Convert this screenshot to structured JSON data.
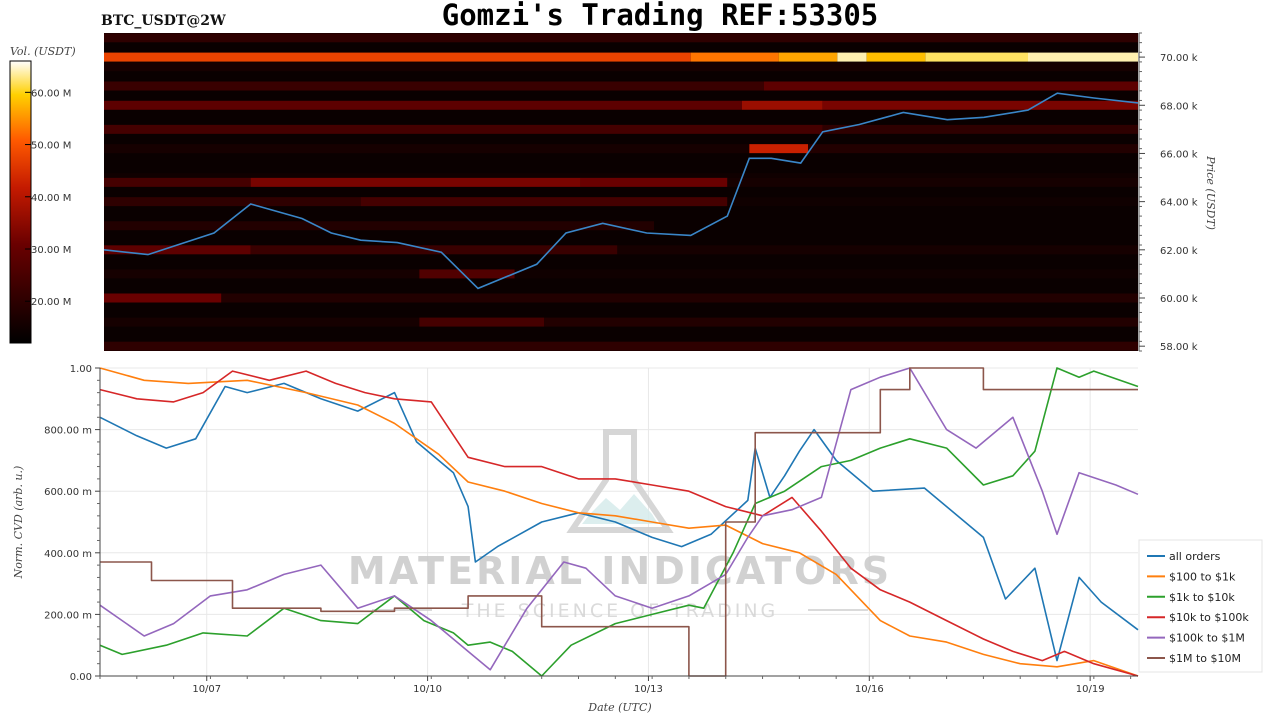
{
  "header": {
    "title": "Gomzi's Trading REF:53305",
    "pair": "BTC_USDT@2W"
  },
  "watermark": {
    "main": "MATERIAL INDICATORS",
    "sub": "THE SCIENCE OF TRADING"
  },
  "colors": {
    "heatmap_bg": "#0a0000",
    "price_line": "#3a86c8",
    "grid": "#e8e8e8"
  },
  "chart_data": [
    {
      "type": "heatmap",
      "title": "",
      "ylabel": "Price (USDT)",
      "colorbar_label": "Vol. (USDT)",
      "ylim": [
        57800,
        71000
      ],
      "y_ticks": [
        "58.00 k",
        "60.00 k",
        "62.00 k",
        "64.00 k",
        "66.00 k",
        "68.00 k",
        "70.00 k"
      ],
      "y_tick_values": [
        58000,
        60000,
        62000,
        64000,
        66000,
        68000,
        70000
      ],
      "colorbar_ticks": [
        "20.00 M",
        "30.00 M",
        "40.00 M",
        "50.00 M",
        "60.00 M"
      ],
      "colorbar_tick_values": [
        20000000,
        30000000,
        40000000,
        50000000,
        60000000
      ],
      "colorbar_range": [
        12000000,
        66000000
      ],
      "x_range_days": [
        0,
        14.1
      ],
      "bands": [
        {
          "price": 70800,
          "segments": [
            [
              0,
              14.1,
              18
            ]
          ]
        },
        {
          "price": 70400,
          "segments": [
            [
              0,
              14.1,
              10
            ]
          ]
        },
        {
          "price": 70000,
          "segments": [
            [
              0,
              8.0,
              46
            ],
            [
              8.0,
              9.2,
              52
            ],
            [
              9.2,
              10.0,
              56
            ],
            [
              10.0,
              10.4,
              64
            ],
            [
              10.4,
              11.2,
              58
            ],
            [
              11.2,
              12.6,
              62
            ],
            [
              12.6,
              14.1,
              64
            ]
          ]
        },
        {
          "price": 69600,
          "segments": [
            [
              0,
              14.1,
              14
            ]
          ]
        },
        {
          "price": 68800,
          "segments": [
            [
              0,
              9.0,
              20
            ],
            [
              9.0,
              14.1,
              26
            ]
          ]
        },
        {
          "price": 68000,
          "segments": [
            [
              0,
              8.7,
              26
            ],
            [
              8.7,
              9.8,
              34
            ],
            [
              9.8,
              14.1,
              30
            ]
          ]
        },
        {
          "price": 67000,
          "segments": [
            [
              0,
              9.8,
              22
            ],
            [
              9.8,
              14.1,
              18
            ]
          ]
        },
        {
          "price": 66200,
          "segments": [
            [
              0,
              8.8,
              14
            ],
            [
              8.8,
              9.6,
              40
            ],
            [
              9.6,
              14.1,
              16
            ]
          ]
        },
        {
          "price": 65000,
          "segments": [
            [
              0,
              14.1,
              13
            ]
          ]
        },
        {
          "price": 64800,
          "segments": [
            [
              0,
              2.0,
              22
            ],
            [
              2.0,
              6.5,
              30
            ],
            [
              6.5,
              8.5,
              28
            ],
            [
              8.5,
              14.1,
              14
            ]
          ]
        },
        {
          "price": 64000,
          "segments": [
            [
              0,
              3.5,
              18
            ],
            [
              3.5,
              8.5,
              22
            ],
            [
              8.5,
              14.1,
              13
            ]
          ]
        },
        {
          "price": 63000,
          "segments": [
            [
              0,
              7.5,
              16
            ],
            [
              7.5,
              14.1,
              12
            ]
          ]
        },
        {
          "price": 62000,
          "segments": [
            [
              0,
              2.0,
              26
            ],
            [
              2.0,
              7.0,
              20
            ],
            [
              7.0,
              14.1,
              14
            ]
          ]
        },
        {
          "price": 61000,
          "segments": [
            [
              0,
              4.3,
              14
            ],
            [
              4.3,
              5.6,
              24
            ],
            [
              5.6,
              14.1,
              13
            ]
          ]
        },
        {
          "price": 60000,
          "segments": [
            [
              0,
              1.6,
              28
            ],
            [
              1.6,
              14.1,
              16
            ]
          ]
        },
        {
          "price": 59000,
          "segments": [
            [
              0,
              4.3,
              14
            ],
            [
              4.3,
              6.0,
              22
            ],
            [
              6.0,
              14.1,
              16
            ]
          ]
        },
        {
          "price": 58000,
          "segments": [
            [
              0,
              14.1,
              18
            ]
          ]
        }
      ],
      "price_series": {
        "name": "",
        "x_days": [
          0,
          0.6,
          1.0,
          1.5,
          2.0,
          2.7,
          3.1,
          3.5,
          4.0,
          4.6,
          5.1,
          5.9,
          6.3,
          6.8,
          7.4,
          8.0,
          8.5,
          8.8,
          9.1,
          9.5,
          9.8,
          10.3,
          10.9,
          11.5,
          12.0,
          12.6,
          13.0,
          13.5,
          14.1
        ],
        "values": [
          62000,
          61800,
          62200,
          62700,
          63900,
          63300,
          62700,
          62400,
          62300,
          61900,
          60400,
          61400,
          62700,
          63100,
          62700,
          62600,
          63400,
          65800,
          65800,
          65600,
          66900,
          67200,
          67700,
          67400,
          67500,
          67800,
          68500,
          68300,
          68100
        ]
      }
    },
    {
      "type": "line",
      "title": "",
      "xlabel": "Date (UTC)",
      "ylabel": "Norm. CVD (arb. u.)",
      "ylim": [
        0,
        1
      ],
      "x_range_days": [
        0,
        14.1
      ],
      "x_ticks": [
        "10/07",
        "10/10",
        "10/13",
        "10/16",
        "10/19"
      ],
      "x_tick_days": [
        1.45,
        4.45,
        7.45,
        10.45,
        13.45
      ],
      "y_ticks": [
        "0.00",
        "200.00 m",
        "400.00 m",
        "600.00 m",
        "800.00 m",
        "1.00"
      ],
      "y_tick_values": [
        0,
        0.2,
        0.4,
        0.6,
        0.8,
        1.0
      ],
      "legend_position": "right",
      "series": [
        {
          "name": "all orders",
          "color": "#1f77b4",
          "step": false,
          "x": [
            0,
            0.5,
            0.9,
            1.3,
            1.7,
            2.0,
            2.5,
            3.0,
            3.5,
            4.0,
            4.3,
            4.8,
            5.0,
            5.1,
            5.4,
            6.0,
            6.5,
            7.0,
            7.5,
            7.9,
            8.3,
            8.8,
            8.9,
            9.1,
            9.3,
            9.5,
            9.7,
            10.0,
            10.5,
            11.2,
            12.0,
            12.3,
            12.7,
            13.0,
            13.3,
            13.6,
            14.1
          ],
          "y": [
            0.84,
            0.78,
            0.74,
            0.77,
            0.94,
            0.92,
            0.95,
            0.9,
            0.86,
            0.92,
            0.76,
            0.66,
            0.55,
            0.37,
            0.42,
            0.5,
            0.53,
            0.5,
            0.45,
            0.42,
            0.46,
            0.57,
            0.74,
            0.58,
            0.65,
            0.73,
            0.8,
            0.7,
            0.6,
            0.61,
            0.45,
            0.25,
            0.35,
            0.05,
            0.32,
            0.24,
            0.15
          ]
        },
        {
          "name": "$100 to $1k",
          "color": "#ff7f0e",
          "step": false,
          "x": [
            0,
            0.6,
            1.2,
            2.0,
            2.8,
            3.5,
            4.0,
            4.6,
            5.0,
            5.5,
            6.0,
            6.5,
            7.0,
            7.5,
            8.0,
            8.5,
            9.0,
            9.5,
            10.0,
            10.6,
            11.0,
            11.5,
            12.0,
            12.5,
            13.0,
            13.5,
            14.1
          ],
          "y": [
            1.0,
            0.96,
            0.95,
            0.96,
            0.92,
            0.88,
            0.82,
            0.72,
            0.63,
            0.6,
            0.56,
            0.53,
            0.52,
            0.5,
            0.48,
            0.49,
            0.43,
            0.4,
            0.33,
            0.18,
            0.13,
            0.11,
            0.07,
            0.04,
            0.03,
            0.05,
            0.0
          ]
        },
        {
          "name": "$1k to $10k",
          "color": "#2ca02c",
          "step": false,
          "x": [
            0,
            0.3,
            0.9,
            1.4,
            2.0,
            2.5,
            3.0,
            3.5,
            4.0,
            4.4,
            4.8,
            5.0,
            5.3,
            5.6,
            6.0,
            6.4,
            7.0,
            7.5,
            8.0,
            8.2,
            8.6,
            8.9,
            9.3,
            9.8,
            10.2,
            10.6,
            11.0,
            11.5,
            12.0,
            12.4,
            12.7,
            13.0,
            13.3,
            13.5,
            14.1
          ],
          "y": [
            0.1,
            0.07,
            0.1,
            0.14,
            0.13,
            0.22,
            0.18,
            0.17,
            0.26,
            0.18,
            0.14,
            0.1,
            0.11,
            0.08,
            0.0,
            0.1,
            0.17,
            0.2,
            0.23,
            0.22,
            0.4,
            0.56,
            0.6,
            0.68,
            0.7,
            0.74,
            0.77,
            0.74,
            0.62,
            0.65,
            0.73,
            1.0,
            0.97,
            0.99,
            0.94
          ]
        },
        {
          "name": "$10k to $100k",
          "color": "#d62728",
          "step": false,
          "x": [
            0,
            0.5,
            1.0,
            1.4,
            1.8,
            2.3,
            2.8,
            3.2,
            3.6,
            4.0,
            4.5,
            5.0,
            5.5,
            6.0,
            6.5,
            7.0,
            7.5,
            8.0,
            8.5,
            9.0,
            9.4,
            9.8,
            10.2,
            10.6,
            11.0,
            11.5,
            12.0,
            12.4,
            12.8,
            13.1,
            13.5,
            14.1
          ],
          "y": [
            0.93,
            0.9,
            0.89,
            0.92,
            0.99,
            0.96,
            0.99,
            0.95,
            0.92,
            0.9,
            0.89,
            0.71,
            0.68,
            0.68,
            0.64,
            0.64,
            0.62,
            0.6,
            0.55,
            0.52,
            0.58,
            0.47,
            0.35,
            0.28,
            0.24,
            0.18,
            0.12,
            0.08,
            0.05,
            0.08,
            0.04,
            0.0
          ]
        },
        {
          "name": "$100k to $1M",
          "color": "#9467bd",
          "step": false,
          "x": [
            0,
            0.6,
            1.0,
            1.5,
            2.0,
            2.5,
            3.0,
            3.5,
            4.0,
            4.5,
            5.0,
            5.3,
            5.8,
            6.3,
            6.6,
            7.0,
            7.5,
            8.0,
            8.5,
            8.8,
            9.0,
            9.4,
            9.8,
            10.2,
            10.6,
            11.0,
            11.5,
            11.9,
            12.4,
            12.8,
            13.0,
            13.3,
            13.8,
            14.1
          ],
          "y": [
            0.23,
            0.13,
            0.17,
            0.26,
            0.28,
            0.33,
            0.36,
            0.22,
            0.26,
            0.18,
            0.08,
            0.02,
            0.22,
            0.37,
            0.35,
            0.26,
            0.22,
            0.26,
            0.33,
            0.45,
            0.52,
            0.54,
            0.58,
            0.93,
            0.97,
            1.0,
            0.8,
            0.74,
            0.84,
            0.6,
            0.46,
            0.66,
            0.62,
            0.59
          ]
        },
        {
          "name": "$1M to $10M",
          "color": "#8c564b",
          "step": true,
          "x": [
            0,
            0.7,
            1.8,
            3.0,
            4.0,
            5.0,
            6.0,
            7.0,
            8.0,
            8.5,
            8.9,
            9.2,
            10.3,
            10.6,
            11.0,
            11.4,
            12.0,
            13.0,
            14.1
          ],
          "y": [
            0.37,
            0.31,
            0.22,
            0.21,
            0.22,
            0.26,
            0.16,
            0.16,
            0.0,
            0.5,
            0.79,
            0.79,
            0.79,
            0.93,
            1.0,
            1.0,
            0.93,
            0.93,
            0.93
          ]
        }
      ]
    }
  ]
}
